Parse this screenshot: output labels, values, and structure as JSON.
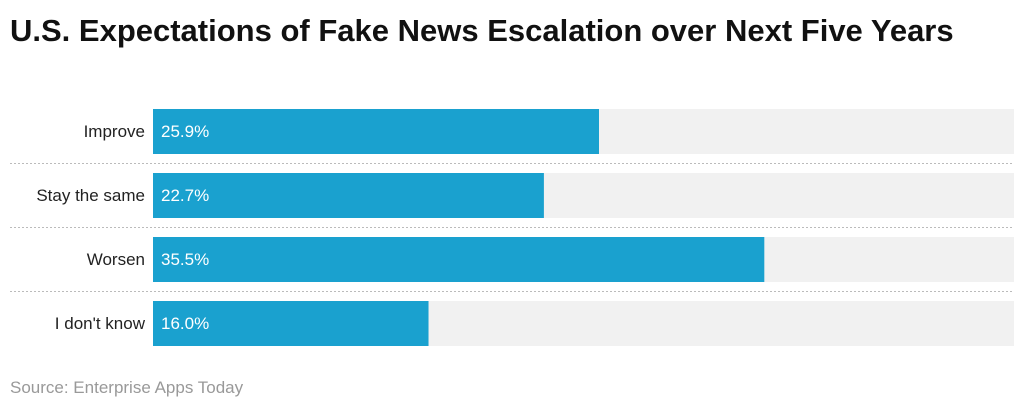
{
  "chart_data": {
    "type": "bar",
    "orientation": "horizontal",
    "title": "U.S. Expectations of Fake News Escalation over Next Five Years",
    "categories": [
      "Improve",
      "Stay the same",
      "Worsen",
      "I don't know"
    ],
    "values": [
      25.9,
      22.7,
      35.5,
      16.0
    ],
    "value_labels": [
      "25.9%",
      "22.7%",
      "35.5%",
      "16.0%"
    ],
    "color": "#1aa1cf",
    "track_color": "#f1f1f1",
    "xlim": [
      0,
      50
    ],
    "source": "Source: Enterprise Apps Today"
  }
}
